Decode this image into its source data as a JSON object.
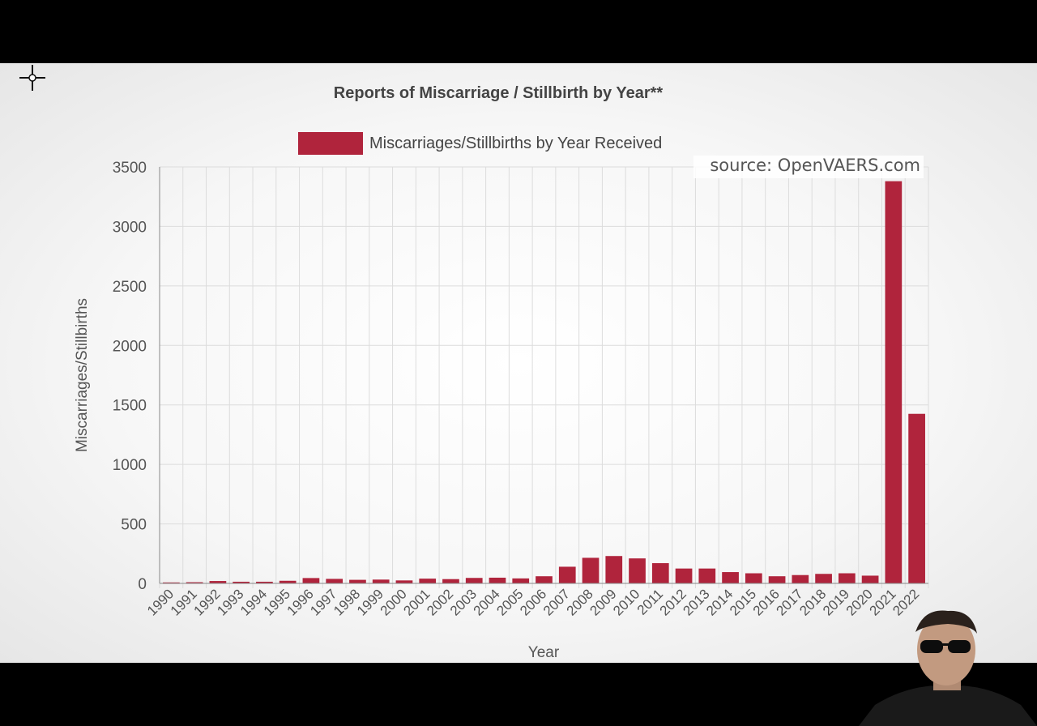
{
  "chart_data": {
    "type": "bar",
    "title": "Reports of Miscarriage / Stillbirth by Year**",
    "xlabel": "Year",
    "ylabel": "Miscarriages/Stillbirths",
    "annotation": "source: OpenVAERS.com",
    "ylim": [
      0,
      3500
    ],
    "yticks": [
      "0",
      "500",
      "1000",
      "1500",
      "2000",
      "2500",
      "3000",
      "3500"
    ],
    "grid": true,
    "legend_position": "top-center",
    "categories": [
      "1990",
      "1991",
      "1992",
      "1993",
      "1994",
      "1995",
      "1996",
      "1997",
      "1998",
      "1999",
      "2000",
      "2001",
      "2002",
      "2003",
      "2004",
      "2005",
      "2006",
      "2007",
      "2008",
      "2009",
      "2010",
      "2011",
      "2012",
      "2013",
      "2014",
      "2015",
      "2016",
      "2017",
      "2018",
      "2019",
      "2020",
      "2021",
      "2022"
    ],
    "series": [
      {
        "name": "Miscarriages/Stillbirths by Year Received",
        "color": "#b0243c",
        "values": [
          8,
          10,
          20,
          14,
          14,
          22,
          45,
          38,
          30,
          32,
          25,
          40,
          36,
          46,
          48,
          42,
          60,
          140,
          215,
          230,
          210,
          170,
          125,
          125,
          95,
          85,
          60,
          70,
          80,
          85,
          65,
          3380,
          1425
        ]
      }
    ]
  },
  "ui": {
    "cursor_icon": "crosshair-cursor-icon",
    "presenter_icon": "presenter-webcam-icon"
  }
}
